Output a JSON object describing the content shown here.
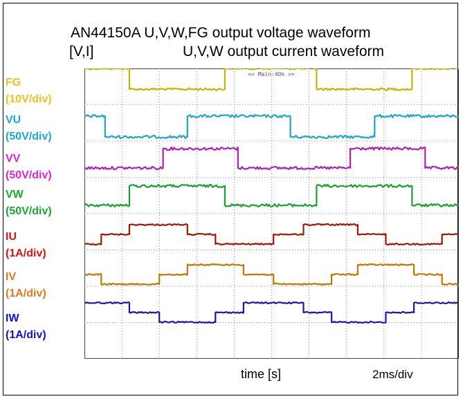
{
  "chart_data": {
    "type": "line",
    "title": "AN44150A U,V,W,FG output voltage waveform",
    "subtitle": "U,V,W output current waveform",
    "ylabel": "[V,I]",
    "xlabel": "time [s]",
    "x_scale_label": "2ms/div",
    "scope_header": "<< Main:40k >>",
    "x_unit": "div",
    "xlim": [
      0,
      10
    ],
    "grid": true,
    "series": [
      {
        "name": "FG",
        "scale": "(10V/div)",
        "color": "#c8b400",
        "label_color": "#f0c020",
        "noise": 0.4,
        "points": [
          [
            0,
            1
          ],
          [
            1.2,
            1
          ],
          [
            1.2,
            0
          ],
          [
            3.75,
            0
          ],
          [
            3.75,
            1
          ],
          [
            6.2,
            1
          ],
          [
            6.2,
            0
          ],
          [
            8.75,
            0
          ],
          [
            8.75,
            1
          ],
          [
            11.2,
            1
          ]
        ]
      },
      {
        "name": "VU",
        "scale": "(50V/div)",
        "color": "#1aa8c8",
        "label_color": "#1aa8d8",
        "noise": 0.5,
        "points": [
          [
            0,
            1
          ],
          [
            0.55,
            1
          ],
          [
            0.55,
            0
          ],
          [
            2.75,
            0
          ],
          [
            2.75,
            1
          ],
          [
            5.5,
            1
          ],
          [
            5.5,
            0
          ],
          [
            7.75,
            0
          ],
          [
            7.75,
            1
          ],
          [
            10,
            1
          ]
        ]
      },
      {
        "name": "VV",
        "scale": "(50V/div)",
        "color": "#b020b8",
        "label_color": "#e020e0",
        "noise": 0.5,
        "points": [
          [
            0,
            0
          ],
          [
            2.1,
            0
          ],
          [
            2.1,
            1
          ],
          [
            4.1,
            1
          ],
          [
            4.1,
            0
          ],
          [
            7.1,
            0
          ],
          [
            7.1,
            1
          ],
          [
            9.1,
            1
          ],
          [
            9.1,
            0
          ],
          [
            10,
            0
          ]
        ]
      },
      {
        "name": "VW",
        "scale": "(50V/div)",
        "color": "#18a030",
        "label_color": "#18a830",
        "noise": 0.5,
        "points": [
          [
            0,
            0
          ],
          [
            1.2,
            0
          ],
          [
            1.2,
            1
          ],
          [
            3.75,
            1
          ],
          [
            3.75,
            0
          ],
          [
            6.2,
            0
          ],
          [
            6.2,
            1
          ],
          [
            8.75,
            1
          ],
          [
            8.75,
            0
          ],
          [
            10,
            0
          ]
        ]
      },
      {
        "name": "IU",
        "scale": "(1A/div)",
        "color": "#a01800",
        "label_color": "#e01010",
        "noise": 0.25,
        "points": [
          [
            0,
            0
          ],
          [
            0.45,
            0
          ],
          [
            0.45,
            0.5
          ],
          [
            1.2,
            0.5
          ],
          [
            1.2,
            1
          ],
          [
            2.75,
            1
          ],
          [
            2.75,
            0.5
          ],
          [
            3.5,
            0.5
          ],
          [
            3.5,
            0
          ],
          [
            5.05,
            0
          ],
          [
            5.05,
            0.5
          ],
          [
            5.85,
            0.5
          ],
          [
            5.85,
            1
          ],
          [
            7.3,
            1
          ],
          [
            7.3,
            0.5
          ],
          [
            8.05,
            0.5
          ],
          [
            8.05,
            0
          ],
          [
            9.55,
            0
          ],
          [
            9.55,
            0.5
          ],
          [
            10,
            0.5
          ]
        ]
      },
      {
        "name": "IV",
        "scale": "(1A/div)",
        "color": "#c07800",
        "label_color": "#e07820",
        "noise": 0.25,
        "points": [
          [
            0,
            0.5
          ],
          [
            0.45,
            0.5
          ],
          [
            0.45,
            0
          ],
          [
            2.0,
            0
          ],
          [
            2.0,
            0.5
          ],
          [
            2.75,
            0.5
          ],
          [
            2.75,
            1
          ],
          [
            4.25,
            1
          ],
          [
            4.25,
            0.5
          ],
          [
            5.05,
            0.5
          ],
          [
            5.05,
            0
          ],
          [
            6.6,
            0
          ],
          [
            6.6,
            0.5
          ],
          [
            7.3,
            0.5
          ],
          [
            7.3,
            1
          ],
          [
            8.8,
            1
          ],
          [
            8.8,
            0.5
          ],
          [
            9.55,
            0.5
          ],
          [
            9.55,
            0
          ],
          [
            10,
            0
          ]
        ]
      },
      {
        "name": "IW",
        "scale": "(1A/div)",
        "color": "#1818b0",
        "label_color": "#1010d0",
        "noise": 0.25,
        "points": [
          [
            0,
            1
          ],
          [
            1.2,
            1
          ],
          [
            1.2,
            0.5
          ],
          [
            2.0,
            0.5
          ],
          [
            2.0,
            0
          ],
          [
            3.5,
            0
          ],
          [
            3.5,
            0.5
          ],
          [
            4.25,
            0.5
          ],
          [
            4.25,
            1
          ],
          [
            5.85,
            1
          ],
          [
            5.85,
            0.5
          ],
          [
            6.6,
            0.5
          ],
          [
            6.6,
            0
          ],
          [
            8.05,
            0
          ],
          [
            8.05,
            0.5
          ],
          [
            8.8,
            0.5
          ],
          [
            8.8,
            1
          ],
          [
            10,
            1
          ]
        ]
      }
    ]
  }
}
